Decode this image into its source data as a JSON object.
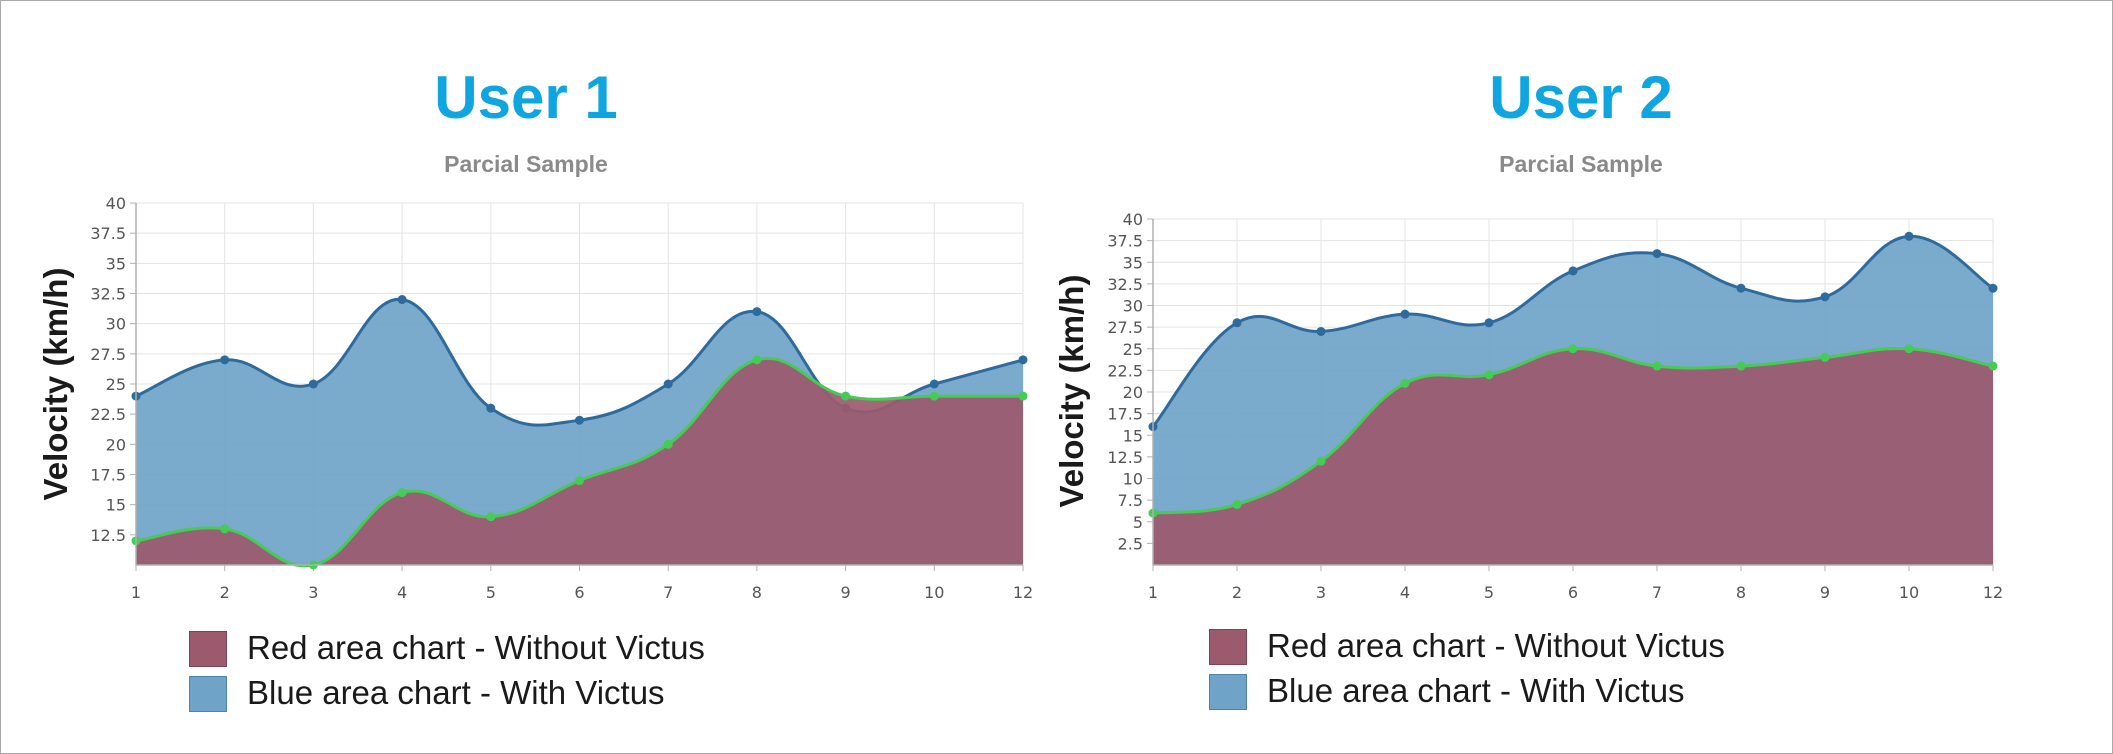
{
  "chart_data": [
    {
      "type": "area",
      "title": "User 1",
      "subtitle": "Parcial Sample",
      "xlabel": "",
      "ylabel": "Velocity (km/h)",
      "x": [
        1,
        2,
        3,
        4,
        5,
        6,
        7,
        8,
        9,
        10,
        12
      ],
      "ylim": [
        10,
        40
      ],
      "yticks": [
        12.5,
        15,
        17.5,
        20,
        22.5,
        25,
        27.5,
        30,
        32.5,
        35,
        37.5,
        40
      ],
      "grid": true,
      "legend_position": "bottom-left",
      "series": [
        {
          "name": "Red area chart - Without Victus",
          "color": "#9b5a6e",
          "line_color": "#44cc55",
          "values": [
            12,
            13,
            10,
            16,
            14,
            17,
            20,
            27,
            24,
            24,
            24
          ]
        },
        {
          "name": "Blue area chart - With Victus",
          "color": "#6fa3c8",
          "line_color": "#2d6b9e",
          "values": [
            24,
            27,
            25,
            32,
            23,
            22,
            25,
            31,
            23,
            25,
            27
          ]
        }
      ]
    },
    {
      "type": "area",
      "title": "User 2",
      "subtitle": "Parcial Sample",
      "xlabel": "",
      "ylabel": "Velocity (km/h)",
      "x": [
        1,
        2,
        3,
        4,
        5,
        6,
        7,
        8,
        9,
        10,
        12
      ],
      "ylim": [
        0,
        40
      ],
      "yticks": [
        2.5,
        5,
        7.5,
        10,
        12.5,
        15,
        17.5,
        20,
        22.5,
        25,
        27.5,
        30,
        32.5,
        35,
        37.5,
        40
      ],
      "grid": true,
      "legend_position": "bottom-left",
      "series": [
        {
          "name": "Red area chart - Without Victus",
          "color": "#9b5a6e",
          "line_color": "#44cc55",
          "values": [
            6,
            7,
            12,
            21,
            22,
            25,
            23,
            23,
            24,
            25,
            23
          ]
        },
        {
          "name": "Blue area chart - With Victus",
          "color": "#6fa3c8",
          "line_color": "#2d6b9e",
          "values": [
            16,
            28,
            27,
            29,
            28,
            34,
            36,
            32,
            31,
            38,
            32
          ]
        }
      ]
    }
  ]
}
